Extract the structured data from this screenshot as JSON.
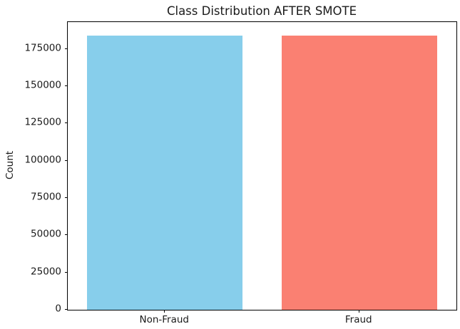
{
  "chart_data": {
    "type": "bar",
    "title": "Class Distribution AFTER SMOTE",
    "xlabel": "",
    "ylabel": "Count",
    "categories": [
      "Non-Fraud",
      "Fraud"
    ],
    "values": [
      184000,
      184000
    ],
    "bar_colors": [
      "#87CEEB",
      "#FA8072"
    ],
    "ylim": [
      0,
      193000
    ],
    "yticks": [
      0,
      25000,
      50000,
      75000,
      100000,
      125000,
      150000,
      175000
    ],
    "ytick_labels": [
      "0",
      "25000",
      "50000",
      "75000",
      "100000",
      "125000",
      "150000",
      "175000"
    ],
    "grid": false,
    "legend": "none",
    "layout": "single axes, spines on all four sides, white background"
  }
}
